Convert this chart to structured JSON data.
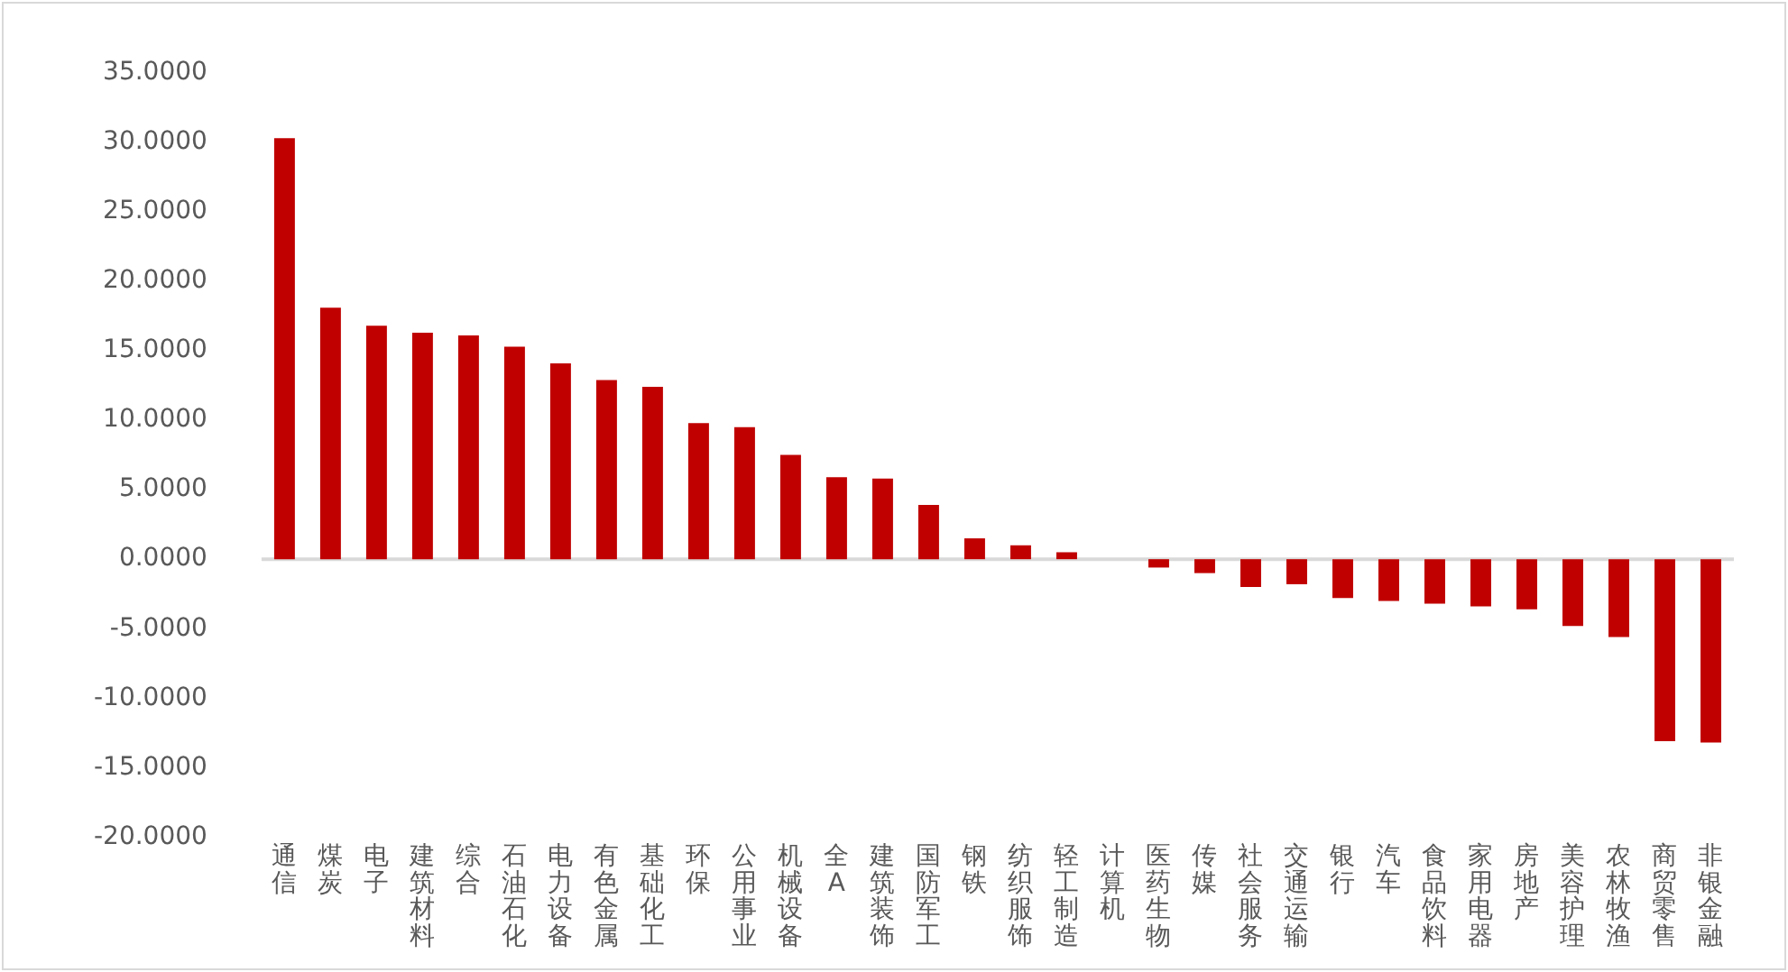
{
  "chart_data": {
    "type": "bar",
    "categories": [
      "通信",
      "煤炭",
      "电子",
      "建筑材料",
      "综合",
      "石油石化",
      "电力设备",
      "有色金属",
      "基础化工",
      "环保",
      "公用事业",
      "机械设备",
      "全A",
      "建筑装饰",
      "国防军工",
      "钢铁",
      "纺织服饰",
      "轻工制造",
      "计算机",
      "医药生物",
      "传媒",
      "社会服务",
      "交通运输",
      "银行",
      "汽车",
      "食品饮料",
      "家用电器",
      "房地产",
      "美容护理",
      "农林牧渔",
      "商贸零售",
      "非银金融"
    ],
    "values": [
      30.3,
      18.1,
      16.8,
      16.3,
      16.1,
      15.3,
      14.1,
      12.9,
      12.4,
      9.8,
      9.5,
      7.5,
      5.9,
      5.8,
      3.9,
      1.5,
      1.0,
      0.5,
      0,
      -0.6,
      -1.0,
      -2.0,
      -1.8,
      -2.8,
      -3.0,
      -3.2,
      -3.4,
      -3.6,
      -4.8,
      -5.6,
      -13.1,
      -13.2
    ],
    "color": "#c00000",
    "ylim": [
      -20,
      35
    ],
    "yticks": [
      {
        "value": -20,
        "label": "-20.0000"
      },
      {
        "value": -15,
        "label": "-15.0000"
      },
      {
        "value": -10,
        "label": "-10.0000"
      },
      {
        "value": -5,
        "label": "-5.0000"
      },
      {
        "value": 0,
        "label": "0.0000"
      },
      {
        "value": 5,
        "label": "5.0000"
      },
      {
        "value": 10,
        "label": "10.0000"
      },
      {
        "value": 15,
        "label": "15.0000"
      },
      {
        "value": 20,
        "label": "20.0000"
      },
      {
        "value": 25,
        "label": "25.0000"
      },
      {
        "value": 30,
        "label": "30.0000"
      },
      {
        "value": 35,
        "label": "35.0000"
      }
    ],
    "ref_lines": [
      {
        "axis": "y",
        "value": 0,
        "color": "#d9d9d9"
      }
    ],
    "grid": false,
    "legend": false
  }
}
